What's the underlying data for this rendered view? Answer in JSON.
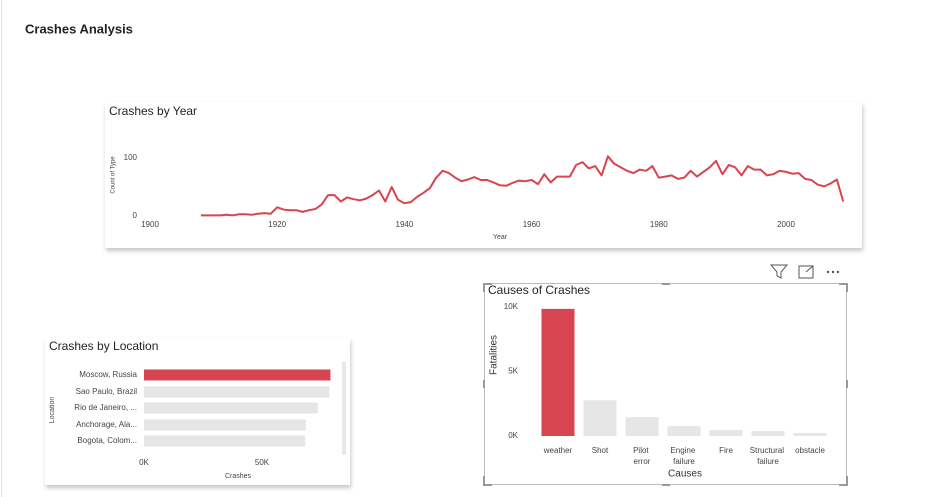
{
  "page": {
    "title": "Crashes Analysis"
  },
  "chart_data": [
    {
      "type": "line",
      "title": "Crashes by Year",
      "xlabel": "Year",
      "ylabel": "Count of Type",
      "color": "#d64550",
      "x": [
        1908,
        1909,
        1910,
        1911,
        1912,
        1913,
        1914,
        1915,
        1916,
        1917,
        1918,
        1919,
        1920,
        1921,
        1922,
        1923,
        1924,
        1925,
        1926,
        1927,
        1928,
        1929,
        1930,
        1931,
        1932,
        1933,
        1934,
        1935,
        1936,
        1937,
        1938,
        1939,
        1940,
        1941,
        1942,
        1943,
        1944,
        1945,
        1946,
        1947,
        1948,
        1949,
        1950,
        1951,
        1952,
        1953,
        1954,
        1955,
        1956,
        1957,
        1958,
        1959,
        1960,
        1961,
        1962,
        1963,
        1964,
        1965,
        1966,
        1967,
        1968,
        1969,
        1970,
        1971,
        1972,
        1973,
        1974,
        1975,
        1976,
        1977,
        1978,
        1979,
        1980,
        1981,
        1982,
        1983,
        1984,
        1985,
        1986,
        1987,
        1988,
        1989,
        1990,
        1991,
        1992,
        1993,
        1994,
        1995,
        1996,
        1997,
        1998,
        1999,
        2000,
        2001,
        2002,
        2003,
        2004,
        2005,
        2006,
        2007,
        2008,
        2009
      ],
      "values": [
        1,
        1,
        1,
        1,
        2,
        1,
        3,
        3,
        2,
        4,
        5,
        4,
        15,
        11,
        10,
        10,
        7,
        10,
        12,
        20,
        36,
        36,
        25,
        32,
        29,
        27,
        30,
        36,
        44,
        25,
        50,
        28,
        22,
        24,
        33,
        40,
        48,
        66,
        78,
        74,
        66,
        60,
        63,
        67,
        62,
        62,
        58,
        53,
        52,
        57,
        61,
        60,
        62,
        55,
        72,
        58,
        68,
        68,
        68,
        88,
        93,
        82,
        86,
        70,
        103,
        90,
        84,
        78,
        74,
        80,
        78,
        86,
        66,
        68,
        70,
        64,
        66,
        78,
        68,
        76,
        84,
        95,
        72,
        88,
        84,
        70,
        86,
        80,
        80,
        70,
        72,
        78,
        76,
        73,
        74,
        64,
        62,
        54,
        51,
        56,
        63,
        25
      ],
      "xlim": [
        1900,
        2010
      ],
      "xticks": [
        1900,
        1920,
        1940,
        1960,
        1980,
        2000
      ],
      "ylim": [
        0,
        110
      ],
      "yticks": [
        0,
        100
      ]
    },
    {
      "type": "hbar",
      "title": "Crashes by Location",
      "xlabel": "Crashes",
      "ylabel": "Location",
      "categories": [
        "Moscow, Russia",
        "Sao Paulo, Brazil",
        "Rio de Janeiro, ...",
        "Anchorage, Ala...",
        "Bogota, Colom..."
      ],
      "values": [
        79000,
        78500,
        73700,
        68600,
        68300
      ],
      "colors": [
        "#d64550",
        "#e6e6e6",
        "#e6e6e6",
        "#e6e6e6",
        "#e6e6e6"
      ],
      "xlim": [
        0,
        80000
      ],
      "xticks": [
        {
          "value": 0,
          "label": "0K"
        },
        {
          "value": 50000,
          "label": "50K"
        }
      ]
    },
    {
      "type": "bar",
      "title": "Causes of Crashes",
      "xlabel": "Causes",
      "ylabel": "Fatalities",
      "categories": [
        "weather",
        "Shot",
        "Pilot error",
        "Engine failure",
        "Fire",
        "Structural failure",
        "obstacle"
      ],
      "values": [
        9850,
        2770,
        1460,
        770,
        460,
        380,
        230
      ],
      "colors": [
        "#d64550",
        "#e6e6e6",
        "#e6e6e6",
        "#e6e6e6",
        "#e6e6e6",
        "#e6e6e6",
        "#e6e6e6"
      ],
      "ylim": [
        0,
        10500
      ],
      "yticks": [
        {
          "value": 0,
          "label": "0K"
        },
        {
          "value": 5000,
          "label": "5K"
        },
        {
          "value": 10000,
          "label": "10K"
        }
      ]
    }
  ]
}
